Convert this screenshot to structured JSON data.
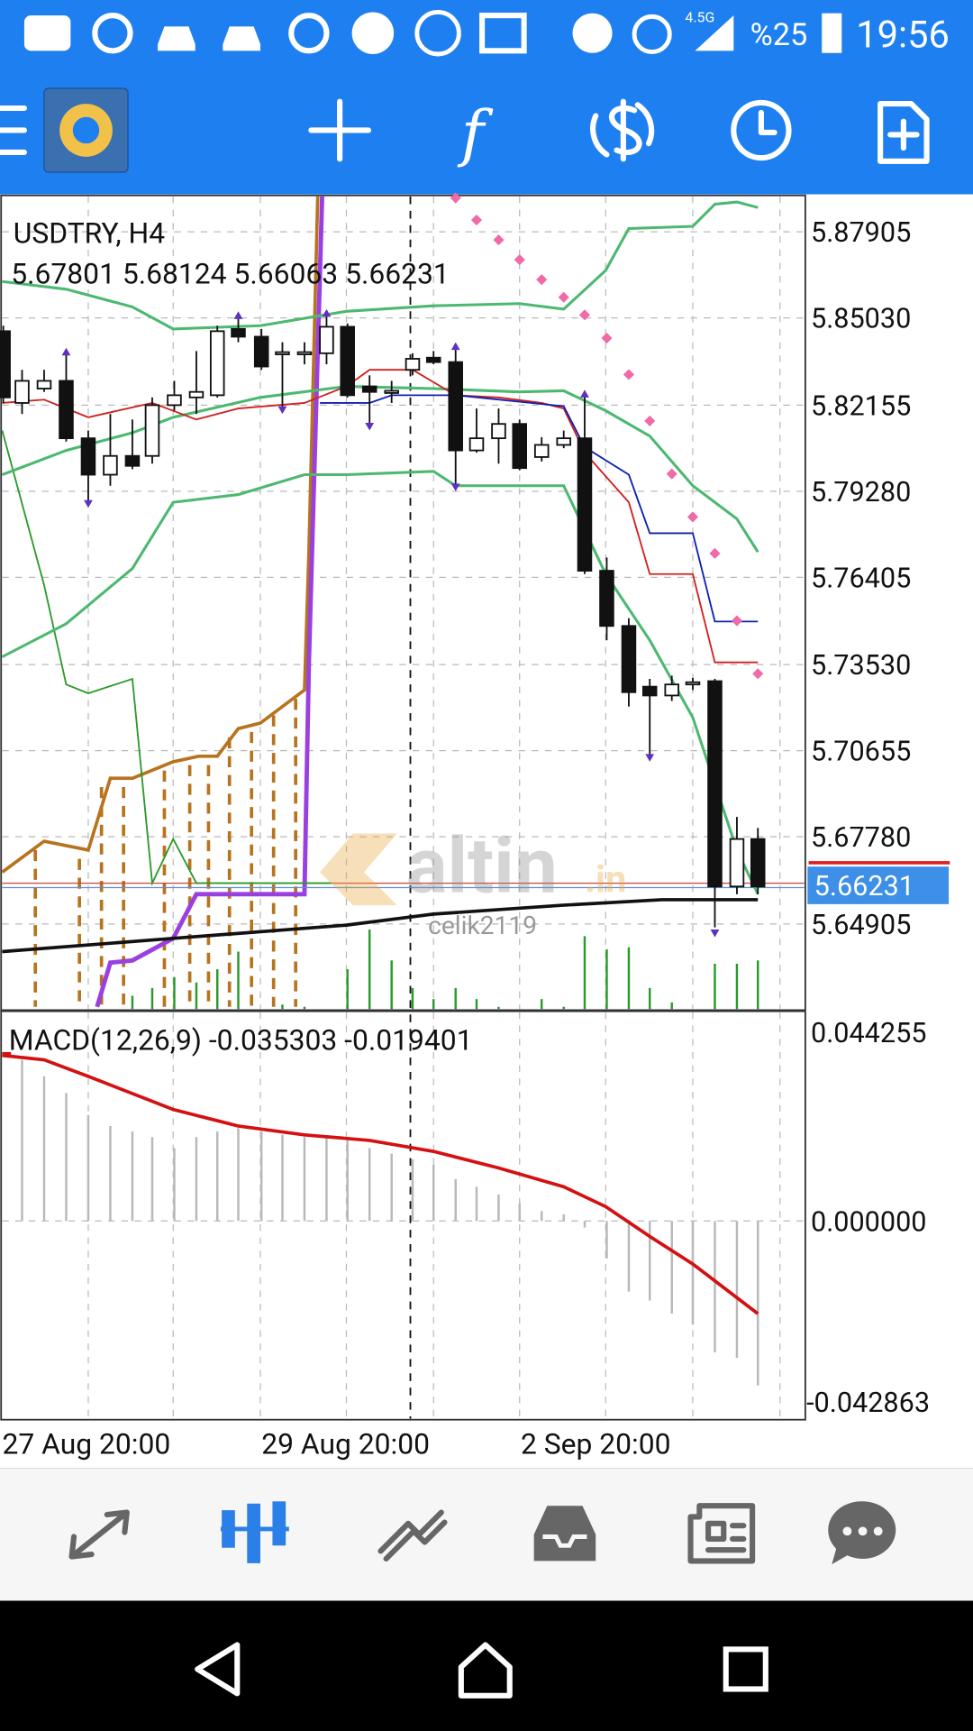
{
  "status": {
    "network": "4.5G",
    "battery": "%25",
    "time": "19:56"
  },
  "chart": {
    "symbol": "USDTRY, H4",
    "ohlc": "5.67801 5.68124 5.66063 5.66231",
    "price_labels": [
      "5.87905",
      "5.85030",
      "5.82155",
      "5.79280",
      "5.76405",
      "5.73530",
      "5.70655",
      "5.67780",
      "5.64905"
    ],
    "current_price": "5.66231",
    "watermark": {
      "brand": "altin",
      "suffix": ".in",
      "user": "celik2119"
    }
  },
  "macd": {
    "label": "MACD(12,26,9) -0.035303 -0.019401",
    "levels": [
      "0.044255",
      "0.000000",
      "-0.042863"
    ]
  },
  "time_labels": [
    "27 Aug 20:00",
    "29 Aug 20:00",
    "2 Sep 20:00"
  ]
}
